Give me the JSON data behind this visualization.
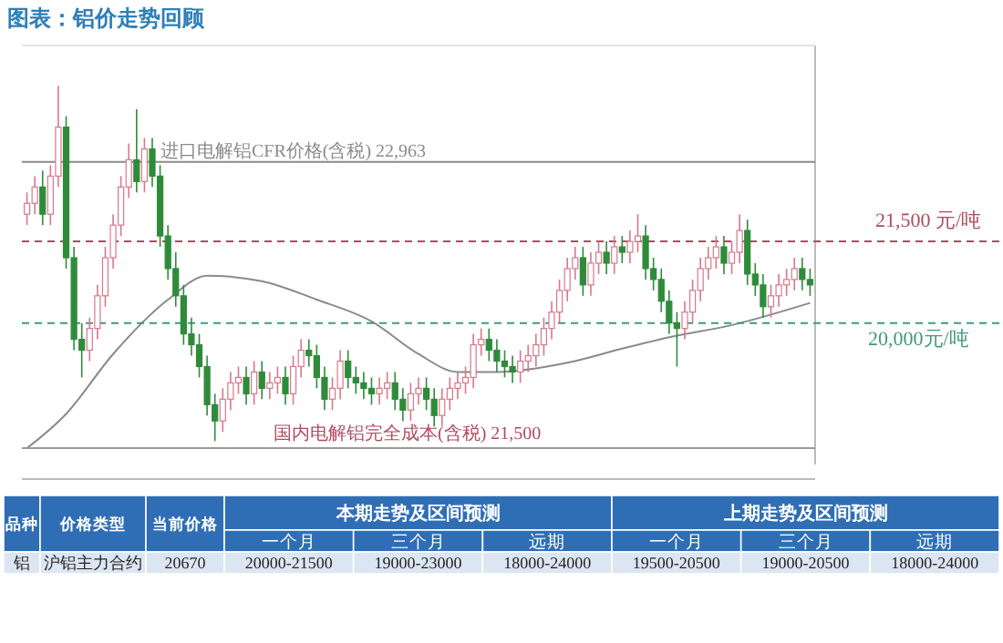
{
  "chart_data": [
    {
      "type": "candlestick",
      "title": "图表：铝价走势回顾",
      "categories": [
        null,
        null,
        null,
        null,
        null,
        null,
        null,
        null,
        null,
        null,
        null,
        null,
        null,
        null,
        null,
        null,
        null,
        null,
        null,
        null,
        null,
        null,
        null,
        null,
        null,
        null,
        null,
        null,
        null,
        null,
        null,
        null,
        null,
        null,
        null,
        null,
        null,
        null,
        null,
        null,
        null,
        null,
        null,
        null,
        null,
        null,
        null,
        null,
        null,
        null,
        null,
        null,
        null,
        null,
        null,
        null,
        null,
        null,
        null,
        null,
        null,
        null,
        null,
        null,
        null,
        null,
        null,
        null,
        null,
        null,
        null,
        null,
        null,
        null,
        null,
        null,
        null,
        null,
        null,
        null,
        null,
        null,
        null,
        null,
        null,
        null,
        null,
        null,
        null,
        null,
        null,
        null,
        null,
        null,
        null,
        null,
        null,
        null,
        null,
        null,
        null
      ],
      "ohlc": [
        [
          22000,
          22400,
          21800,
          22200
        ],
        [
          22200,
          22700,
          22000,
          22500
        ],
        [
          22500,
          22800,
          21800,
          22000
        ],
        [
          22000,
          22900,
          21800,
          22700
        ],
        [
          22700,
          24360,
          22500,
          23600
        ],
        [
          23600,
          23800,
          21000,
          21200
        ],
        [
          21200,
          21400,
          19500,
          19700
        ],
        [
          19700,
          20000,
          19000,
          19500
        ],
        [
          19500,
          20100,
          19300,
          19900
        ],
        [
          19900,
          20700,
          19700,
          20500
        ],
        [
          20500,
          21400,
          20300,
          21200
        ],
        [
          21200,
          22000,
          21000,
          21800
        ],
        [
          21800,
          22700,
          21600,
          22500
        ],
        [
          22500,
          23300,
          22300,
          23000
        ],
        [
          23000,
          23930,
          22400,
          22600
        ],
        [
          22600,
          23400,
          22400,
          23200
        ],
        [
          23200,
          23400,
          22500,
          22700
        ],
        [
          22700,
          22900,
          21400,
          21600
        ],
        [
          21600,
          21800,
          20800,
          21000
        ],
        [
          21000,
          21300,
          20300,
          20500
        ],
        [
          20500,
          20700,
          19600,
          19800
        ],
        [
          19800,
          20100,
          19400,
          19600
        ],
        [
          19600,
          19800,
          19000,
          19200
        ],
        [
          19200,
          19400,
          18300,
          18500
        ],
        [
          18500,
          18700,
          17830,
          18200
        ],
        [
          18200,
          18800,
          18000,
          18600
        ],
        [
          18600,
          19100,
          18400,
          18900
        ],
        [
          18900,
          19200,
          18700,
          19000
        ],
        [
          19000,
          19200,
          18500,
          18700
        ],
        [
          18700,
          19300,
          18500,
          19100
        ],
        [
          19100,
          19300,
          18600,
          18800
        ],
        [
          18800,
          19100,
          18600,
          18900
        ],
        [
          18900,
          19200,
          18700,
          19000
        ],
        [
          19000,
          19200,
          18500,
          18700
        ],
        [
          18700,
          19400,
          18500,
          19200
        ],
        [
          19200,
          19700,
          19000,
          19500
        ],
        [
          19500,
          19700,
          19200,
          19400
        ],
        [
          19400,
          19600,
          18800,
          19000
        ],
        [
          19000,
          19200,
          18400,
          18600
        ],
        [
          18600,
          19000,
          18400,
          18800
        ],
        [
          18800,
          19500,
          18600,
          19300
        ],
        [
          19300,
          19500,
          18800,
          19000
        ],
        [
          19000,
          19200,
          18700,
          18900
        ],
        [
          18900,
          19100,
          18600,
          18800
        ],
        [
          18800,
          19000,
          18500,
          18700
        ],
        [
          18700,
          19000,
          18500,
          18800
        ],
        [
          18800,
          19100,
          18600,
          18900
        ],
        [
          18900,
          19100,
          18400,
          18600
        ],
        [
          18600,
          18800,
          18200,
          18400
        ],
        [
          18400,
          18900,
          18200,
          18700
        ],
        [
          18700,
          19000,
          18500,
          18800
        ],
        [
          18800,
          19000,
          18400,
          18600
        ],
        [
          18600,
          18800,
          18100,
          18300
        ],
        [
          18300,
          18800,
          18100,
          18600
        ],
        [
          18600,
          19000,
          18400,
          18800
        ],
        [
          18800,
          19100,
          18600,
          18900
        ],
        [
          18900,
          19200,
          18700,
          19000
        ],
        [
          19000,
          19800,
          18800,
          19600
        ],
        [
          19600,
          19900,
          19400,
          19700
        ],
        [
          19700,
          19900,
          19300,
          19500
        ],
        [
          19500,
          19700,
          19100,
          19300
        ],
        [
          19300,
          19500,
          19000,
          19200
        ],
        [
          19200,
          19400,
          18900,
          19100
        ],
        [
          19100,
          19500,
          18900,
          19300
        ],
        [
          19300,
          19600,
          19100,
          19400
        ],
        [
          19400,
          19800,
          19200,
          19600
        ],
        [
          19600,
          20100,
          19400,
          19900
        ],
        [
          19900,
          20400,
          19700,
          20200
        ],
        [
          20200,
          20800,
          20000,
          20600
        ],
        [
          20600,
          21200,
          20400,
          21000
        ],
        [
          21000,
          21400,
          20800,
          21200
        ],
        [
          21200,
          21400,
          20500,
          20700
        ],
        [
          20700,
          21300,
          20500,
          21100
        ],
        [
          21100,
          21500,
          20900,
          21300
        ],
        [
          21300,
          21500,
          20900,
          21100
        ],
        [
          21100,
          21600,
          20900,
          21400
        ],
        [
          21400,
          21600,
          21100,
          21300
        ],
        [
          21300,
          21700,
          21100,
          21500
        ],
        [
          21500,
          22000,
          21300,
          21600
        ],
        [
          21600,
          21800,
          20800,
          21000
        ],
        [
          21000,
          21200,
          20600,
          20800
        ],
        [
          20800,
          21000,
          20200,
          20400
        ],
        [
          20400,
          20600,
          19800,
          20000
        ],
        [
          20000,
          20200,
          19200,
          19900
        ],
        [
          19900,
          20400,
          19700,
          20200
        ],
        [
          20200,
          20800,
          20000,
          20600
        ],
        [
          20600,
          21200,
          20400,
          21000
        ],
        [
          21000,
          21400,
          20800,
          21200
        ],
        [
          21200,
          21600,
          21000,
          21400
        ],
        [
          21400,
          21600,
          20900,
          21100
        ],
        [
          21100,
          21500,
          20900,
          21300
        ],
        [
          21300,
          22000,
          21100,
          21700
        ],
        [
          21700,
          21900,
          20700,
          20900
        ],
        [
          20900,
          21100,
          20500,
          20700
        ],
        [
          20700,
          20900,
          20100,
          20300
        ],
        [
          20300,
          20700,
          20100,
          20500
        ],
        [
          20500,
          20900,
          20300,
          20700
        ],
        [
          20700,
          21000,
          20500,
          20800
        ],
        [
          20800,
          21200,
          20600,
          21000
        ],
        [
          21000,
          21200,
          20600,
          20800
        ],
        [
          20800,
          21000,
          20500,
          20700
        ]
      ],
      "series": [
        {
          "type": "line",
          "color": "#8a8a8a",
          "values": [
            17700,
            null,
            null,
            null,
            null,
            18330,
            null,
            null,
            null,
            null,
            null,
            19430,
            null,
            null,
            null,
            null,
            null,
            null,
            20430,
            null,
            null,
            null,
            null,
            20870,
            null,
            null,
            null,
            null,
            null,
            null,
            20770,
            null,
            null,
            null,
            null,
            null,
            null,
            20430,
            null,
            null,
            null,
            null,
            null,
            null,
            20030,
            null,
            null,
            null,
            null,
            null,
            19430,
            null,
            null,
            null,
            null,
            19100,
            null,
            null,
            null,
            null,
            19100,
            null,
            null,
            null,
            null,
            null,
            null,
            null,
            null,
            19270,
            null,
            null,
            null,
            null,
            null,
            null,
            19530,
            null,
            null,
            null,
            null,
            null,
            null,
            19770,
            null,
            null,
            null,
            null,
            null,
            19930,
            null,
            null,
            null,
            null,
            null,
            null,
            null,
            null,
            null,
            null,
            20370
          ]
        }
      ],
      "ylim": [
        17400,
        25100
      ],
      "ref_lines": [
        {
          "axis": "y",
          "value": 22963,
          "label": "进口电解铝CFR价格(含税) 22,963",
          "color": "#8a8a8a",
          "line_style": "solid"
        },
        {
          "axis": "y",
          "value": 21500,
          "label": "21,500 元/吨",
          "color": "#b04a5e",
          "line_style": "dashed"
        },
        {
          "axis": "y",
          "value": 20000,
          "label": "20,000元/吨",
          "color": "#3f9a7a",
          "line_style": "dashed"
        },
        {
          "axis": "y",
          "value": 17700,
          "color": "#9a9a9a",
          "line_style": "solid"
        }
      ],
      "annotations": [
        "国内电解铝完全成本(含税) 21,500"
      ]
    },
    {
      "type": "other",
      "annotations": [
        "品种",
        "价格类型",
        "当前价格",
        "本期走势及区间预测",
        "上期走势及区间预测",
        "一个月",
        "三个月",
        "远期",
        "一个月",
        "三个月",
        "远期",
        "铝",
        "沪铝主力合约",
        "20670",
        "20000-21500",
        "19000-23000",
        "18000-24000",
        "19500-20500",
        "19000-20500",
        "18000-24000"
      ]
    }
  ]
}
